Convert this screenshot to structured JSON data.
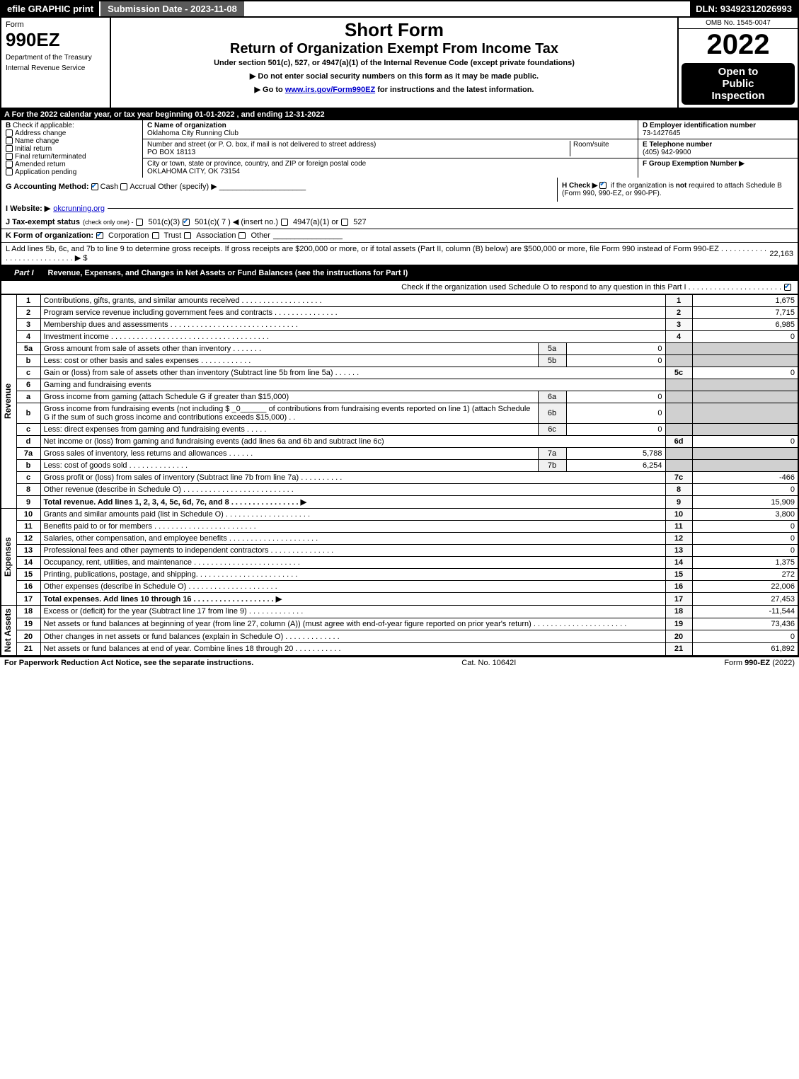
{
  "topbar": {
    "efile": "efile GRAPHIC print",
    "submission": "Submission Date - 2023-11-08",
    "dln": "DLN: 93492312026993"
  },
  "header": {
    "form_label": "Form",
    "form_number": "990EZ",
    "dept1": "Department of the Treasury",
    "dept2": "Internal Revenue Service",
    "short_form": "Short Form",
    "return_title": "Return of Organization Exempt From Income Tax",
    "under_section": "Under section 501(c), 527, or 4947(a)(1) of the Internal Revenue Code (except private foundations)",
    "instruct1_pre": "▶ Do not enter social security numbers on this form as it may be made public.",
    "instruct2_pre": "▶ Go to ",
    "instruct2_link": "www.irs.gov/Form990EZ",
    "instruct2_post": " for instructions and the latest information.",
    "omb": "OMB No. 1545-0047",
    "year": "2022",
    "open1": "Open to",
    "open2": "Public",
    "open3": "Inspection"
  },
  "row_a": "A  For the 2022 calendar year, or tax year beginning 01-01-2022  , and ending 12-31-2022",
  "col_b": {
    "title": "B",
    "subtitle": "Check if applicable:",
    "items": [
      "Address change",
      "Name change",
      "Initial return",
      "Final return/terminated",
      "Amended return",
      "Application pending"
    ]
  },
  "col_c": {
    "name_label": "C Name of organization",
    "name": "Oklahoma City Running Club",
    "street_label": "Number and street (or P. O. box, if mail is not delivered to street address)",
    "room_label": "Room/suite",
    "street": "PO BOX 18113",
    "city_label": "City or town, state or province, country, and ZIP or foreign postal code",
    "city": "OKLAHOMA CITY, OK   73154"
  },
  "col_d": {
    "ein_label": "D Employer identification number",
    "ein": "73-1427645",
    "tel_label": "E Telephone number",
    "tel": "(405) 942-9900",
    "group_label": "F Group Exemption Number   ▶"
  },
  "row_g": {
    "label": "G Accounting Method:",
    "opts": [
      "Cash",
      "Accrual",
      "Other (specify) ▶"
    ]
  },
  "row_h": {
    "text1": "H   Check ▶",
    "text2": "if the organization is ",
    "not": "not",
    "text3": " required to attach Schedule B",
    "text4": "(Form 990, 990-EZ, or 990-PF)."
  },
  "row_i": {
    "label": "I Website: ▶",
    "value": "okcrunning.org"
  },
  "row_j": {
    "label": "J Tax-exempt status",
    "sub": "(check only one) -",
    "opts": [
      "501(c)(3)",
      "501(c)( 7 ) ◀ (insert no.)",
      "4947(a)(1) or",
      "527"
    ]
  },
  "row_k": {
    "label": "K Form of organization:",
    "opts": [
      "Corporation",
      "Trust",
      "Association",
      "Other"
    ]
  },
  "row_l": {
    "text": "L Add lines 5b, 6c, and 7b to line 9 to determine gross receipts. If gross receipts are $200,000 or more, or if total assets (Part II, column (B) below) are $500,000 or more, file Form 990 instead of Form 990-EZ  .  .  .  .  .  .  .  .  .  .  .  .  .  .  .  .  .  .  .  .  .  .  .  .  .  .  .  ▶ $",
    "value": "22,163"
  },
  "part1": {
    "title": "Part I",
    "desc": "Revenue, Expenses, and Changes in Net Assets or Fund Balances (see the instructions for Part I)",
    "check_text": "Check if the organization used Schedule O to respond to any question in this Part I .  .  .  .  .  .  .  .  .  .  .  .  .  .  .  .  .  .  .  .  .  ."
  },
  "sections": {
    "revenue": "Revenue",
    "expenses": "Expenses",
    "netassets": "Net Assets"
  },
  "lines": [
    {
      "sec": "rev",
      "n": "1",
      "desc": "Contributions, gifts, grants, and similar amounts received  .  .  .  .  .  .  .  .  .  .  .  .  .  .  .  .  .  .  .",
      "code": "1",
      "amt": "1,675"
    },
    {
      "sec": "rev",
      "n": "2",
      "desc": "Program service revenue including government fees and contracts  .  .  .  .  .  .  .  .  .  .  .  .  .  .  .",
      "code": "2",
      "amt": "7,715"
    },
    {
      "sec": "rev",
      "n": "3",
      "desc": "Membership dues and assessments  .  .  .  .  .  .  .  .  .  .  .  .  .  .  .  .  .  .  .  .  .  .  .  .  .  .  .  .  .  .",
      "code": "3",
      "amt": "6,985"
    },
    {
      "sec": "rev",
      "n": "4",
      "desc": "Investment income .  .  .  .  .  .  .  .  .  .  .  .  .  .  .  .  .  .  .  .  .  .  .  .  .  .  .  .  .  .  .  .  .  .  .  .  .",
      "code": "4",
      "amt": "0"
    },
    {
      "sec": "rev",
      "n": "5a",
      "desc": "Gross amount from sale of assets other than inventory  .  .  .  .  .  .  .",
      "sub": "5a",
      "subval": "0",
      "grey": true
    },
    {
      "sec": "rev",
      "n": "b",
      "desc": "Less: cost or other basis and sales expenses  .  .  .  .  .  .  .  .  .  .  .  .",
      "sub": "5b",
      "subval": "0",
      "grey": true
    },
    {
      "sec": "rev",
      "n": "c",
      "desc": "Gain or (loss) from sale of assets other than inventory (Subtract line 5b from line 5a)  .  .  .  .  .  .",
      "code": "5c",
      "amt": "0"
    },
    {
      "sec": "rev",
      "n": "6",
      "desc": "Gaming and fundraising events",
      "grey": true,
      "noamt": true
    },
    {
      "sec": "rev",
      "n": "a",
      "desc": "Gross income from gaming (attach Schedule G if greater than $15,000)",
      "sub": "6a",
      "subval": "0",
      "grey": true
    },
    {
      "sec": "rev",
      "n": "b",
      "desc": "Gross income from fundraising events (not including $ _0______ of contributions from fundraising events reported on line 1) (attach Schedule G if the sum of such gross income and contributions exceeds $15,000)   .   .",
      "sub": "6b",
      "subval": "0",
      "grey": true
    },
    {
      "sec": "rev",
      "n": "c",
      "desc": "Less: direct expenses from gaming and fundraising events  .  .  .  .  .",
      "sub": "6c",
      "subval": "0",
      "grey": true
    },
    {
      "sec": "rev",
      "n": "d",
      "desc": "Net income or (loss) from gaming and fundraising events (add lines 6a and 6b and subtract line 6c)",
      "code": "6d",
      "amt": "0"
    },
    {
      "sec": "rev",
      "n": "7a",
      "desc": "Gross sales of inventory, less returns and allowances  .  .  .  .  .  .",
      "sub": "7a",
      "subval": "5,788",
      "grey": true
    },
    {
      "sec": "rev",
      "n": "b",
      "desc": "Less: cost of goods sold         .   .   .   .   .   .   .   .   .   .   .   .   .   .",
      "sub": "7b",
      "subval": "6,254",
      "grey": true
    },
    {
      "sec": "rev",
      "n": "c",
      "desc": "Gross profit or (loss) from sales of inventory (Subtract line 7b from line 7a)  .  .  .  .  .  .  .  .  .  .",
      "code": "7c",
      "amt": "-466"
    },
    {
      "sec": "rev",
      "n": "8",
      "desc": "Other revenue (describe in Schedule O)  .  .  .  .  .  .  .  .  .  .  .  .  .  .  .  .  .  .  .  .  .  .  .  .  .  .",
      "code": "8",
      "amt": "0"
    },
    {
      "sec": "rev",
      "n": "9",
      "desc": "Total revenue. Add lines 1, 2, 3, 4, 5c, 6d, 7c, and 8   .   .   .   .   .   .   .   .   .   .   .   .   .   .   .   .   ▶",
      "code": "9",
      "amt": "15,909",
      "bold": true
    },
    {
      "sec": "exp",
      "n": "10",
      "desc": "Grants and similar amounts paid (list in Schedule O)  .  .  .  .  .  .  .  .  .  .  .  .  .  .  .  .  .  .  .  .",
      "code": "10",
      "amt": "3,800"
    },
    {
      "sec": "exp",
      "n": "11",
      "desc": "Benefits paid to or for members    .   .   .   .   .   .   .   .   .   .   .   .   .   .   .   .   .   .   .   .   .   .   .   .",
      "code": "11",
      "amt": "0"
    },
    {
      "sec": "exp",
      "n": "12",
      "desc": "Salaries, other compensation, and employee benefits .  .  .  .  .  .  .  .  .  .  .  .  .  .  .  .  .  .  .  .  .",
      "code": "12",
      "amt": "0"
    },
    {
      "sec": "exp",
      "n": "13",
      "desc": "Professional fees and other payments to independent contractors  .  .  .  .  .  .  .  .  .  .  .  .  .  .  .",
      "code": "13",
      "amt": "0"
    },
    {
      "sec": "exp",
      "n": "14",
      "desc": "Occupancy, rent, utilities, and maintenance .  .  .  .  .  .  .  .  .  .  .  .  .  .  .  .  .  .  .  .  .  .  .  .  .",
      "code": "14",
      "amt": "1,375"
    },
    {
      "sec": "exp",
      "n": "15",
      "desc": "Printing, publications, postage, and shipping.  .  .  .  .  .  .  .  .  .  .  .  .  .  .  .  .  .  .  .  .  .  .  .",
      "code": "15",
      "amt": "272"
    },
    {
      "sec": "exp",
      "n": "16",
      "desc": "Other expenses (describe in Schedule O)    .   .   .   .   .   .   .   .   .   .   .   .   .   .   .   .   .   .   .   .   .",
      "code": "16",
      "amt": "22,006"
    },
    {
      "sec": "exp",
      "n": "17",
      "desc": "Total expenses. Add lines 10 through 16     .   .   .   .   .   .   .   .   .   .   .   .   .   .   .   .   .   .   .   ▶",
      "code": "17",
      "amt": "27,453",
      "bold": true
    },
    {
      "sec": "net",
      "n": "18",
      "desc": "Excess or (deficit) for the year (Subtract line 17 from line 9)       .   .   .   .   .   .   .   .   .   .   .   .   .",
      "code": "18",
      "amt": "-11,544"
    },
    {
      "sec": "net",
      "n": "19",
      "desc": "Net assets or fund balances at beginning of year (from line 27, column (A)) (must agree with end-of-year figure reported on prior year's return) .  .  .  .  .  .  .  .  .  .  .  .  .  .  .  .  .  .  .  .  .  .",
      "code": "19",
      "amt": "73,436"
    },
    {
      "sec": "net",
      "n": "20",
      "desc": "Other changes in net assets or fund balances (explain in Schedule O) .  .  .  .  .  .  .  .  .  .  .  .  .",
      "code": "20",
      "amt": "0"
    },
    {
      "sec": "net",
      "n": "21",
      "desc": "Net assets or fund balances at end of year. Combine lines 18 through 20 .  .  .  .  .  .  .  .  .  .  .",
      "code": "21",
      "amt": "61,892"
    }
  ],
  "footer": {
    "left": "For Paperwork Reduction Act Notice, see the separate instructions.",
    "center": "Cat. No. 10642I",
    "right_pre": "Form ",
    "right_form": "990-EZ",
    "right_post": " (2022)"
  }
}
